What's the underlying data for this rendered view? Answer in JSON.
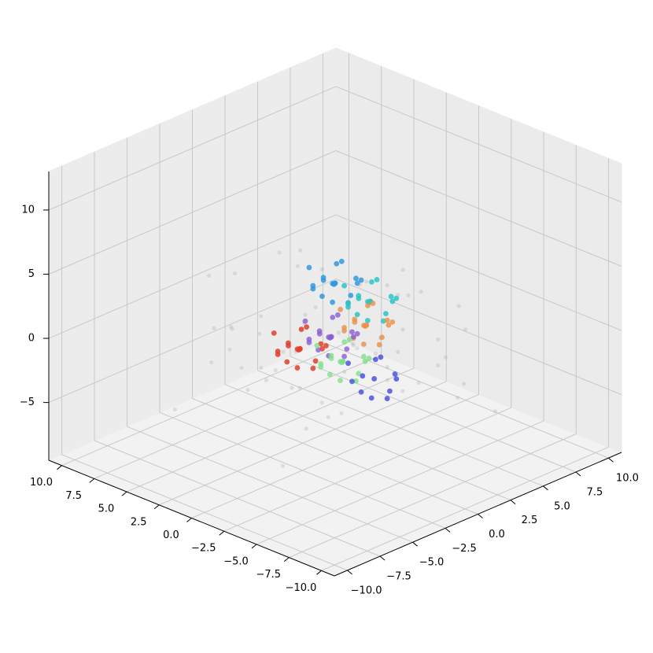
{
  "chart_data": {
    "type": "scatter3d",
    "xlim": [
      -11,
      11
    ],
    "ylim": [
      -11,
      11
    ],
    "zlim": [
      -9.5,
      13
    ],
    "xticks": [
      {
        "value": -10,
        "label": "−10.0"
      },
      {
        "value": -7.5,
        "label": "−7.5"
      },
      {
        "value": -5,
        "label": "−5.0"
      },
      {
        "value": -2.5,
        "label": "−2.5"
      },
      {
        "value": 0,
        "label": "0.0"
      },
      {
        "value": 2.5,
        "label": "2.5"
      },
      {
        "value": 5,
        "label": "5.0"
      },
      {
        "value": 7.5,
        "label": "7.5"
      },
      {
        "value": 10,
        "label": "10.0"
      }
    ],
    "yticks": [
      {
        "value": -10,
        "label": "−10.0"
      },
      {
        "value": -7.5,
        "label": "−7.5"
      },
      {
        "value": -5,
        "label": "−5.0"
      },
      {
        "value": -2.5,
        "label": "−2.5"
      },
      {
        "value": 0,
        "label": "0.0"
      },
      {
        "value": 2.5,
        "label": "2.5"
      },
      {
        "value": 5,
        "label": "5.0"
      },
      {
        "value": 7.5,
        "label": "7.5"
      },
      {
        "value": 10,
        "label": "10.0"
      }
    ],
    "zticks": [
      {
        "value": -5,
        "label": "−5"
      },
      0,
      5,
      10
    ],
    "grid": true,
    "series": [
      {
        "color": "#a8a8a8",
        "alpha": 0.3,
        "x": [
          3.2,
          -4.1,
          5.5,
          -2.7,
          0.8,
          -5.9,
          4.4,
          -1.3,
          2.1,
          -3.6,
          5.1,
          -0.4,
          1.7,
          -4.8,
          3.9,
          -2.2,
          0.2,
          -5.3,
          4.7,
          -1.8,
          2.8,
          -3.1,
          5.8,
          -0.9,
          1.1,
          -4.4,
          3.5,
          -2.5,
          0.6,
          -5.6,
          4.1,
          -1.5,
          2.4,
          -3.9,
          5.3,
          -0.1,
          1.4,
          -4.6,
          3.7,
          -2.9,
          0.9,
          -5.1,
          4.9,
          -1.1,
          2.6,
          -3.3,
          5.6,
          -0.6,
          1.9,
          -4.2,
          6.3,
          -6.1,
          3,
          -3,
          -6.5,
          6,
          0,
          2,
          -2,
          4
        ],
        "y": [
          -2.5,
          3.8,
          1.2,
          -4.9,
          5.6,
          -0.7,
          -3.3,
          2.7,
          -5.8,
          4.3,
          0.5,
          -1.9,
          3.1,
          -4.2,
          5.2,
          -0.3,
          -2.8,
          4.6,
          1.8,
          -5.1,
          3.5,
          -1.4,
          -3.9,
          2.2,
          5.9,
          -0.9,
          -4.6,
          1.5,
          -2.1,
          3.9,
          -5.4,
          4.9,
          0.1,
          -3.6,
          2.9,
          -1.1,
          -4.4,
          5.4,
          1,
          -2.4,
          3.3,
          -5.6,
          -0.4,
          4.1,
          -3.1,
          1.9,
          -1.6,
          5,
          -4.8,
          2.4,
          -6,
          6.2,
          -6.3,
          6.4,
          2,
          -2,
          -1,
          6,
          -6,
          0
        ],
        "z": [
          1.2,
          -2.4,
          3.6,
          -4.1,
          0.3,
          -1.7,
          4.4,
          -3.2,
          2.1,
          -0.8,
          -5.1,
          3.1,
          -2.9,
          1.6,
          -4.6,
          4.9,
          -0.2,
          -3.7,
          2.6,
          -1.2,
          -5.6,
          0.8,
          3.9,
          -2.1,
          -4.4,
          1.9,
          -0.6,
          4.2,
          -3.5,
          2.8,
          -1.5,
          -5.3,
          0.5,
          3.3,
          -2.6,
          -4.8,
          1.4,
          -0.1,
          4.6,
          -3.9,
          2.3,
          -1.9,
          -5.4,
          3.7,
          -2.3,
          0.9,
          -4.2,
          1.1,
          -3,
          4,
          -5.8,
          -6.2,
          2,
          -6.5,
          0,
          -1,
          5.5,
          -7,
          -6.8,
          -3
        ]
      },
      {
        "color": "#3399dd",
        "alpha": 0.85,
        "x": [
          0,
          1.2,
          -1.1,
          0.4,
          -0.6,
          0.9,
          -0.3,
          1.4,
          -1.4,
          0.2,
          -0.8,
          0.6,
          -0.2,
          1.0,
          -1.0,
          0.3,
          -0.5,
          0.7
        ],
        "y": [
          0,
          0.3,
          0.5,
          -1.3,
          -0.8,
          1.0,
          1.4,
          -0.6,
          -0.2,
          0.7,
          0.2,
          -0.4,
          -1.1,
          0.9,
          1.0,
          0.1,
          -0.5,
          -1.0
        ],
        "z": [
          4,
          3.6,
          4.6,
          4.2,
          3.1,
          4.7,
          3.5,
          4.9,
          3.7,
          5.3,
          2.7,
          2.9,
          5,
          3.1,
          4.2,
          3.8,
          4.4,
          3.7
        ]
      },
      {
        "color": "#2ec4c4",
        "alpha": 0.85,
        "x": [
          -1.3,
          -0.1,
          -2.4,
          -0.9,
          -1.9,
          -0.4,
          -1.6,
          0.1,
          -2.7,
          -1.1,
          -2.1,
          -0.7,
          -1.5,
          -0.3,
          -2.3,
          -1,
          -1.8,
          -0.6
        ],
        "y": [
          1.4,
          1.7,
          1.9,
          0.1,
          0.6,
          2.4,
          2.8,
          0.8,
          1.2,
          2.1,
          1.6,
          1,
          0.3,
          2.3,
          2.4,
          1.5,
          0.9,
          0.4
        ],
        "z": [
          2.5,
          2.1,
          3.1,
          2.7,
          1.6,
          3.2,
          2,
          3.4,
          2.2,
          3.8,
          1.2,
          1.4,
          3.5,
          1.6,
          2.7,
          2.3,
          2.9,
          2.2
        ]
      },
      {
        "color": "#e8914a",
        "alpha": 0.8,
        "x": [
          -1.2,
          0,
          -2.3,
          -0.8,
          -1.8,
          -0.3,
          -1.5,
          0.2,
          -2.6,
          -1,
          -2,
          -0.6,
          -1.4,
          -0.2,
          -2.2,
          -0.9,
          -1.7,
          -0.5
        ],
        "y": [
          1.2,
          1.5,
          1.7,
          -0.1,
          0.4,
          2.2,
          2.6,
          0.6,
          1,
          1.9,
          1.4,
          0.8,
          0.1,
          2.1,
          2.2,
          1.3,
          0.7,
          0.2
        ],
        "z": [
          0.7,
          0.3,
          1.3,
          0.9,
          -0.2,
          1.4,
          0.2,
          1.6,
          0.4,
          2,
          -0.6,
          -0.4,
          1.7,
          -0.2,
          0.9,
          0.5,
          1.1,
          0.4
        ]
      },
      {
        "color": "#e0402e",
        "alpha": 0.85,
        "x": [
          1.5,
          2.7,
          0.4,
          1.9,
          0.9,
          2.4,
          1.2,
          2.9,
          0.1,
          1.7,
          0.7,
          2.1,
          1.3,
          2.5,
          0.5,
          1.8,
          1,
          2.2
        ],
        "y": [
          -1.2,
          -0.9,
          -0.7,
          -2.5,
          -2,
          -0.2,
          0.2,
          -1.8,
          -1.4,
          -0.5,
          -1,
          -1.6,
          -2.3,
          -0.3,
          -0.2,
          -1.1,
          -1.7,
          -2.2
        ],
        "z": [
          -1.2,
          -1.6,
          -0.6,
          -1,
          -2.1,
          -0.5,
          -1.7,
          -0.3,
          -1.5,
          0.1,
          -2.5,
          -2.3,
          -0.2,
          -2.1,
          -1,
          -1.4,
          -0.8,
          -1.5
        ]
      },
      {
        "color": "#8a5cd6",
        "alpha": 0.8,
        "x": [
          0.3,
          1.5,
          -0.8,
          0.7,
          -0.3,
          1.2,
          0,
          1.7,
          -1.1,
          0.5,
          -0.5,
          0.9,
          0.1,
          1.3,
          -0.7,
          0.6,
          -0.2,
          1
        ],
        "y": [
          0,
          0.3,
          0.5,
          -1.3,
          -0.8,
          1,
          1.4,
          -0.6,
          -0.2,
          0.7,
          0.2,
          -0.4,
          -1.1,
          0.9,
          1,
          0.1,
          -0.5,
          -1
        ],
        "z": [
          -0.3,
          -0.7,
          0.3,
          -0.1,
          -1.2,
          0.4,
          -0.8,
          0.6,
          -0.6,
          1,
          -1.6,
          -1.4,
          0.7,
          -1.2,
          -0.1,
          -0.5,
          0.1,
          -0.6
        ]
      },
      {
        "color": "#7ee08a",
        "alpha": 0.8,
        "x": [
          -0.3,
          0.9,
          -1.4,
          0.1,
          -0.9,
          0.6,
          -0.6,
          1.1,
          -1.7,
          -0.1,
          -1.1,
          0.3,
          -0.5,
          0.7,
          -1.3,
          0,
          -0.8,
          0.4
        ],
        "y": [
          0.3,
          0.6,
          0.8,
          -1,
          -0.5,
          1.3,
          1.7,
          -0.3,
          0.1,
          1,
          0.5,
          -0.1,
          -0.8,
          1.2,
          1.3,
          0.4,
          -0.2,
          -0.7
        ],
        "z": [
          -2.1,
          -2.5,
          -1.5,
          -1.9,
          -3,
          -1.4,
          -2.6,
          -1.2,
          -2.4,
          -0.8,
          -3.4,
          -3.2,
          -1.1,
          -3,
          -1.9,
          -2.3,
          -1.7,
          -2.4
        ]
      },
      {
        "color": "#4a55e0",
        "alpha": 0.85,
        "x": [
          -1.5,
          -0.3,
          -2.6,
          -1.1,
          -2.1,
          -0.6,
          -1.8,
          -0.1,
          -2.9,
          -1.3,
          -2.3,
          -0.9
        ],
        "y": [
          1.5,
          1.8,
          2,
          0.2,
          0.7,
          2.5,
          2.9,
          0.9,
          1.3,
          2.2,
          1.7,
          1.1
        ],
        "z": [
          -3.5,
          -3.9,
          -2.9,
          -3.3,
          -4.4,
          -2.8,
          -4,
          -2.6,
          -3.8,
          -2.2,
          -4.8,
          -4.6
        ]
      }
    ]
  }
}
